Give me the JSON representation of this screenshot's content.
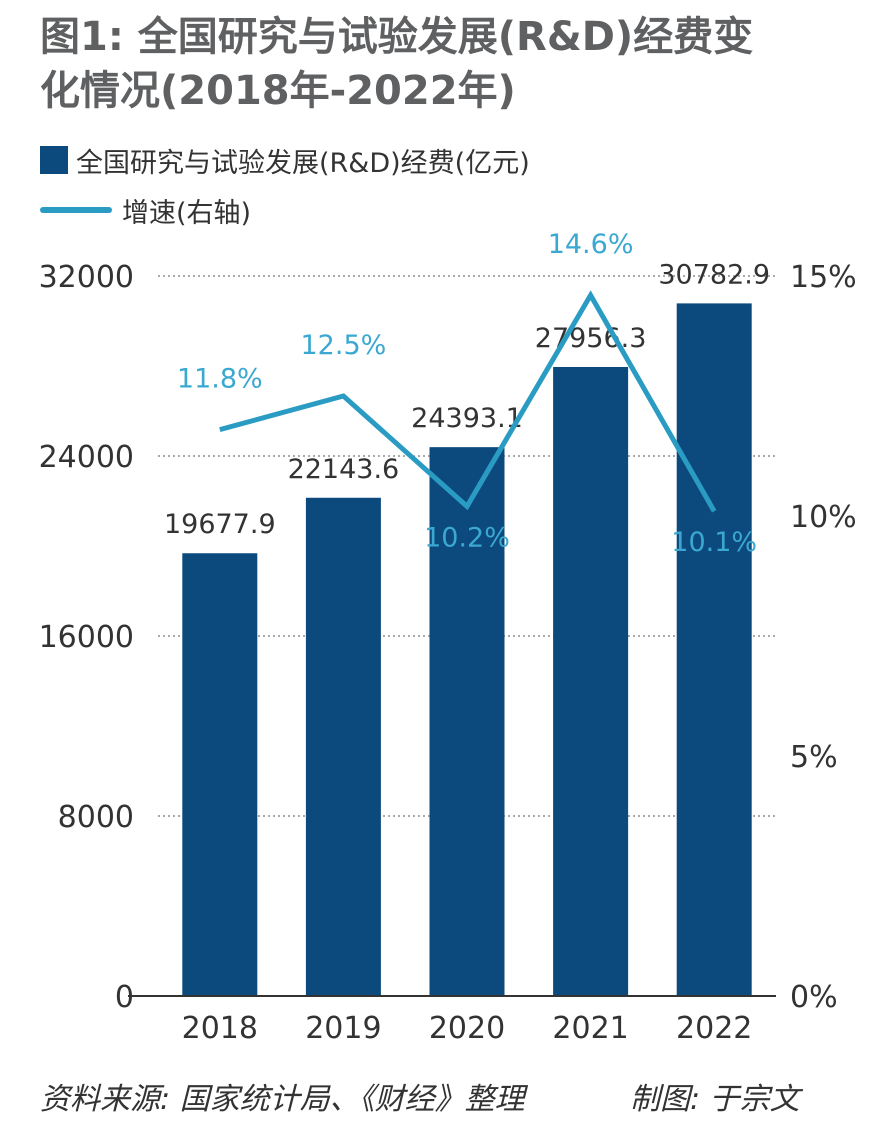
{
  "title": {
    "line1": "图1: 全国研究与试验发展(R&D)经费变",
    "line2": "化情况(2018年-2022年)"
  },
  "legend": {
    "bar_label": "全国研究与试验发展(R&D)经费(亿元)",
    "line_label": "增速(右轴)"
  },
  "chart_data": {
    "type": "bar",
    "categories": [
      "2018",
      "2019",
      "2020",
      "2021",
      "2022"
    ],
    "series": [
      {
        "name": "全国研究与试验发展(R&D)经费(亿元)",
        "type": "bar",
        "axis": "left",
        "values": [
          19677.9,
          22143.6,
          24393.1,
          27956.3,
          30782.9
        ],
        "labels": [
          "19677.9",
          "22143.6",
          "24393.1",
          "27956.3",
          "30782.9"
        ]
      },
      {
        "name": "增速(右轴)",
        "type": "line",
        "axis": "right",
        "values": [
          11.8,
          12.5,
          10.2,
          14.6,
          10.1
        ],
        "labels": [
          "11.8%",
          "12.5%",
          "10.2%",
          "14.6%",
          "10.1%"
        ]
      }
    ],
    "y_left": {
      "ticks": [
        0,
        8000,
        16000,
        24000,
        32000
      ],
      "tick_labels": [
        "0",
        "8000",
        "16000",
        "24000",
        "32000"
      ],
      "range": [
        0,
        32000
      ]
    },
    "y_right": {
      "ticks": [
        0,
        5,
        10,
        15
      ],
      "tick_labels": [
        "0%",
        "5%",
        "10%",
        "15%"
      ],
      "range": [
        0,
        15
      ]
    },
    "grid": true,
    "legend_position": "top-left",
    "colors": {
      "bar": "#0c4a7e",
      "line": "#2a9cc4",
      "line_label": "#3aa8d0"
    }
  },
  "footer": {
    "source": "资料来源: 国家统计局、《财经》整理",
    "credit": "制图: 于宗文"
  }
}
